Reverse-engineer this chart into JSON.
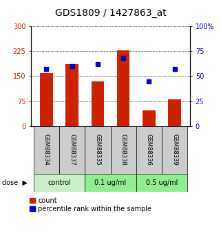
{
  "title": "GDS1809 / 1427863_at",
  "categories": [
    "GSM88334",
    "GSM88337",
    "GSM88335",
    "GSM88338",
    "GSM88336",
    "GSM88339"
  ],
  "bar_values": [
    160,
    185,
    135,
    228,
    48,
    80
  ],
  "dot_values_pct": [
    57,
    60,
    62,
    68,
    45,
    57
  ],
  "bar_color": "#cc2200",
  "dot_color": "#0000cc",
  "left_ylim": [
    0,
    300
  ],
  "right_ylim": [
    0,
    100
  ],
  "left_yticks": [
    0,
    75,
    150,
    225,
    300
  ],
  "right_yticks": [
    0,
    25,
    50,
    75,
    100
  ],
  "left_yticklabels": [
    "0",
    "75",
    "150",
    "225",
    "300"
  ],
  "right_yticklabels": [
    "0",
    "25",
    "50",
    "75",
    "100%"
  ],
  "groups": [
    {
      "label": "control",
      "start": 0,
      "end": 2,
      "color": "#c8f0c8"
    },
    {
      "label": "0.1 ug/ml",
      "start": 2,
      "end": 4,
      "color": "#90ee90"
    },
    {
      "label": "0.5 ug/ml",
      "start": 4,
      "end": 6,
      "color": "#90ee90"
    }
  ],
  "sample_box_color": "#cccccc",
  "dose_label": "dose",
  "legend_items": [
    {
      "label": "count",
      "color": "#cc2200"
    },
    {
      "label": "percentile rank within the sample",
      "color": "#0000cc"
    }
  ],
  "bar_width": 0.5,
  "title_fontsize": 10,
  "tick_fontsize": 7,
  "label_fontsize": 6,
  "group_fontsize": 7,
  "dose_fontsize": 7,
  "legend_fontsize": 7,
  "ax_label_color_left": "#cc2200",
  "ax_label_color_right": "#0000cc",
  "dot_size": 18
}
